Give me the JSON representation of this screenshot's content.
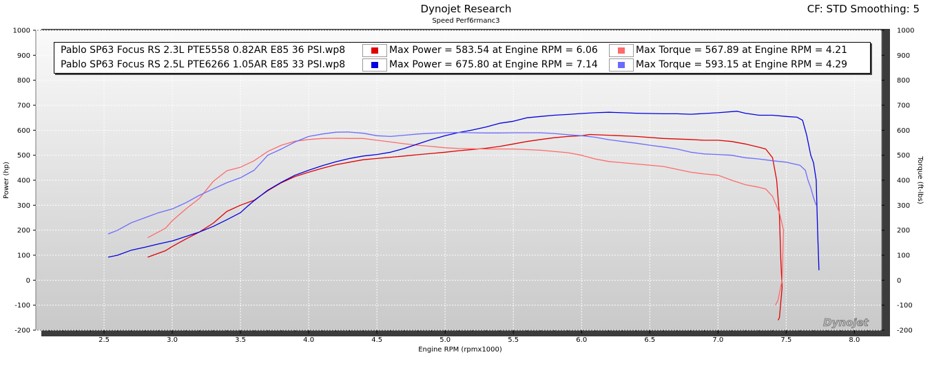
{
  "header": {
    "title": "Dynojet Research",
    "subtitle": "Speed Perf6rmanc3",
    "cf_smoothing": "CF: STD Smoothing: 5"
  },
  "watermark": "Dynojet",
  "legend": [
    {
      "file": "Pablo SP63 Focus RS 2.3L PTE5558 0.82AR E85 36 PSI.wp8",
      "power_text": "Max Power = 583.54 at Engine RPM = 6.06",
      "torque_text": "Max Torque = 567.89 at Engine RPM = 4.21",
      "power_color": "#e00000",
      "torque_color": "#ff6a6a"
    },
    {
      "file": "Pablo SP63 Focus RS 2.5L PTE6266 1.05AR E85 33 PSI.wp8",
      "power_text": "Max Power = 675.80 at Engine RPM = 7.14",
      "torque_text": "Max Torque = 593.15 at Engine RPM = 4.29",
      "power_color": "#0000e0",
      "torque_color": "#6a6aff"
    }
  ],
  "chart_data": {
    "type": "line",
    "xlabel": "Engine RPM (rpmx1000)",
    "ylabel_left": "Power (hp)",
    "ylabel_right": "Torque (ft-lbs)",
    "xlim": [
      2.0,
      8.2
    ],
    "ylim": [
      -200,
      1000
    ],
    "x_ticks": [
      "2.5",
      "3.0",
      "3.5",
      "4.0",
      "4.5",
      "5.0",
      "5.5",
      "6.0",
      "6.5",
      "7.0",
      "7.5",
      "8.0"
    ],
    "y_ticks": [
      "-200",
      "-100",
      "0",
      "100",
      "200",
      "300",
      "400",
      "500",
      "600",
      "700",
      "800",
      "900",
      "1000"
    ],
    "grid": true,
    "series": [
      {
        "name": "Pablo SP63 Focus RS 2.3L PTE5558 0.82AR E85 36 PSI.wp8 (Power)",
        "color": "#e00000",
        "points": [
          [
            2.82,
            92
          ],
          [
            2.95,
            118
          ],
          [
            3.0,
            135
          ],
          [
            3.1,
            165
          ],
          [
            3.2,
            193
          ],
          [
            3.3,
            228
          ],
          [
            3.4,
            275
          ],
          [
            3.5,
            300
          ],
          [
            3.6,
            320
          ],
          [
            3.7,
            358
          ],
          [
            3.8,
            390
          ],
          [
            3.9,
            415
          ],
          [
            4.0,
            432
          ],
          [
            4.1,
            448
          ],
          [
            4.2,
            462
          ],
          [
            4.3,
            472
          ],
          [
            4.4,
            482
          ],
          [
            4.5,
            487
          ],
          [
            4.6,
            492
          ],
          [
            4.7,
            497
          ],
          [
            4.8,
            502
          ],
          [
            4.9,
            507
          ],
          [
            5.0,
            512
          ],
          [
            5.1,
            518
          ],
          [
            5.2,
            523
          ],
          [
            5.3,
            528
          ],
          [
            5.4,
            535
          ],
          [
            5.5,
            545
          ],
          [
            5.6,
            555
          ],
          [
            5.7,
            563
          ],
          [
            5.8,
            570
          ],
          [
            5.9,
            575
          ],
          [
            6.0,
            578
          ],
          [
            6.06,
            583
          ],
          [
            6.2,
            580
          ],
          [
            6.4,
            575
          ],
          [
            6.6,
            567
          ],
          [
            6.8,
            563
          ],
          [
            6.9,
            560
          ],
          [
            7.0,
            560
          ],
          [
            7.1,
            555
          ],
          [
            7.2,
            545
          ],
          [
            7.3,
            532
          ],
          [
            7.35,
            525
          ],
          [
            7.4,
            490
          ],
          [
            7.43,
            400
          ],
          [
            7.45,
            260
          ],
          [
            7.46,
            90
          ],
          [
            7.47,
            -30
          ],
          [
            7.45,
            -150
          ],
          [
            7.44,
            -160
          ]
        ]
      },
      {
        "name": "Pablo SP63 Focus RS 2.3L PTE5558 0.82AR E85 36 PSI.wp8 (Torque)",
        "color": "#ff6a6a",
        "points": [
          [
            2.82,
            170
          ],
          [
            2.95,
            208
          ],
          [
            3.0,
            238
          ],
          [
            3.1,
            285
          ],
          [
            3.2,
            328
          ],
          [
            3.3,
            395
          ],
          [
            3.4,
            438
          ],
          [
            3.5,
            452
          ],
          [
            3.6,
            478
          ],
          [
            3.7,
            515
          ],
          [
            3.8,
            540
          ],
          [
            3.9,
            556
          ],
          [
            4.0,
            563
          ],
          [
            4.1,
            567
          ],
          [
            4.21,
            568
          ],
          [
            4.3,
            567
          ],
          [
            4.4,
            567
          ],
          [
            4.5,
            560
          ],
          [
            4.6,
            553
          ],
          [
            4.7,
            546
          ],
          [
            4.8,
            540
          ],
          [
            4.9,
            535
          ],
          [
            5.0,
            530
          ],
          [
            5.1,
            527
          ],
          [
            5.3,
            525
          ],
          [
            5.5,
            525
          ],
          [
            5.7,
            520
          ],
          [
            5.9,
            510
          ],
          [
            6.0,
            500
          ],
          [
            6.1,
            485
          ],
          [
            6.2,
            475
          ],
          [
            6.4,
            465
          ],
          [
            6.6,
            455
          ],
          [
            6.8,
            432
          ],
          [
            6.9,
            425
          ],
          [
            7.0,
            420
          ],
          [
            7.1,
            400
          ],
          [
            7.2,
            382
          ],
          [
            7.3,
            372
          ],
          [
            7.35,
            365
          ],
          [
            7.4,
            335
          ],
          [
            7.45,
            270
          ],
          [
            7.48,
            200
          ],
          [
            7.47,
            0
          ],
          [
            7.44,
            -80
          ],
          [
            7.42,
            -100
          ]
        ]
      },
      {
        "name": "Pablo SP63 Focus RS 2.5L PTE6266 1.05AR E85 33 PSI.wp8 (Power)",
        "color": "#0000e0",
        "points": [
          [
            2.53,
            92
          ],
          [
            2.6,
            100
          ],
          [
            2.7,
            120
          ],
          [
            2.8,
            132
          ],
          [
            2.9,
            145
          ],
          [
            3.0,
            157
          ],
          [
            3.1,
            175
          ],
          [
            3.2,
            193
          ],
          [
            3.3,
            215
          ],
          [
            3.4,
            242
          ],
          [
            3.5,
            270
          ],
          [
            3.55,
            295
          ],
          [
            3.6,
            318
          ],
          [
            3.7,
            360
          ],
          [
            3.8,
            392
          ],
          [
            3.9,
            420
          ],
          [
            4.0,
            440
          ],
          [
            4.1,
            458
          ],
          [
            4.2,
            474
          ],
          [
            4.3,
            487
          ],
          [
            4.4,
            497
          ],
          [
            4.5,
            503
          ],
          [
            4.6,
            512
          ],
          [
            4.7,
            527
          ],
          [
            4.8,
            545
          ],
          [
            4.9,
            563
          ],
          [
            5.0,
            578
          ],
          [
            5.1,
            591
          ],
          [
            5.2,
            601
          ],
          [
            5.3,
            613
          ],
          [
            5.4,
            628
          ],
          [
            5.5,
            636
          ],
          [
            5.6,
            650
          ],
          [
            5.7,
            655
          ],
          [
            5.8,
            660
          ],
          [
            5.9,
            663
          ],
          [
            6.0,
            667
          ],
          [
            6.1,
            670
          ],
          [
            6.2,
            672
          ],
          [
            6.3,
            670
          ],
          [
            6.4,
            668
          ],
          [
            6.5,
            667
          ],
          [
            6.6,
            666
          ],
          [
            6.7,
            666
          ],
          [
            6.8,
            664
          ],
          [
            6.9,
            667
          ],
          [
            7.0,
            670
          ],
          [
            7.14,
            676
          ],
          [
            7.2,
            668
          ],
          [
            7.3,
            660
          ],
          [
            7.4,
            660
          ],
          [
            7.5,
            655
          ],
          [
            7.58,
            652
          ],
          [
            7.62,
            640
          ],
          [
            7.65,
            580
          ],
          [
            7.68,
            500
          ],
          [
            7.7,
            470
          ],
          [
            7.72,
            400
          ],
          [
            7.73,
            200
          ],
          [
            7.74,
            40
          ]
        ]
      },
      {
        "name": "Pablo SP63 Focus RS 2.5L PTE6266 1.05AR E85 33 PSI.wp8 (Torque)",
        "color": "#6a6aff",
        "points": [
          [
            2.53,
            185
          ],
          [
            2.6,
            200
          ],
          [
            2.7,
            230
          ],
          [
            2.8,
            250
          ],
          [
            2.9,
            270
          ],
          [
            3.0,
            285
          ],
          [
            3.1,
            310
          ],
          [
            3.2,
            340
          ],
          [
            3.3,
            365
          ],
          [
            3.4,
            390
          ],
          [
            3.5,
            410
          ],
          [
            3.6,
            440
          ],
          [
            3.7,
            500
          ],
          [
            3.8,
            525
          ],
          [
            3.9,
            553
          ],
          [
            4.0,
            575
          ],
          [
            4.1,
            585
          ],
          [
            4.2,
            592
          ],
          [
            4.29,
            593
          ],
          [
            4.4,
            588
          ],
          [
            4.5,
            578
          ],
          [
            4.6,
            575
          ],
          [
            4.7,
            580
          ],
          [
            4.8,
            585
          ],
          [
            4.9,
            588
          ],
          [
            5.0,
            590
          ],
          [
            5.1,
            591
          ],
          [
            5.2,
            590
          ],
          [
            5.3,
            589
          ],
          [
            5.4,
            589
          ],
          [
            5.5,
            590
          ],
          [
            5.6,
            590
          ],
          [
            5.7,
            590
          ],
          [
            5.8,
            587
          ],
          [
            5.9,
            582
          ],
          [
            6.0,
            578
          ],
          [
            6.1,
            572
          ],
          [
            6.2,
            562
          ],
          [
            6.3,
            555
          ],
          [
            6.4,
            548
          ],
          [
            6.5,
            540
          ],
          [
            6.6,
            533
          ],
          [
            6.7,
            525
          ],
          [
            6.8,
            512
          ],
          [
            6.9,
            505
          ],
          [
            7.0,
            503
          ],
          [
            7.1,
            500
          ],
          [
            7.2,
            490
          ],
          [
            7.3,
            485
          ],
          [
            7.4,
            478
          ],
          [
            7.5,
            472
          ],
          [
            7.6,
            460
          ],
          [
            7.64,
            440
          ],
          [
            7.66,
            400
          ],
          [
            7.68,
            370
          ],
          [
            7.7,
            330
          ],
          [
            7.72,
            300
          ]
        ]
      }
    ]
  }
}
